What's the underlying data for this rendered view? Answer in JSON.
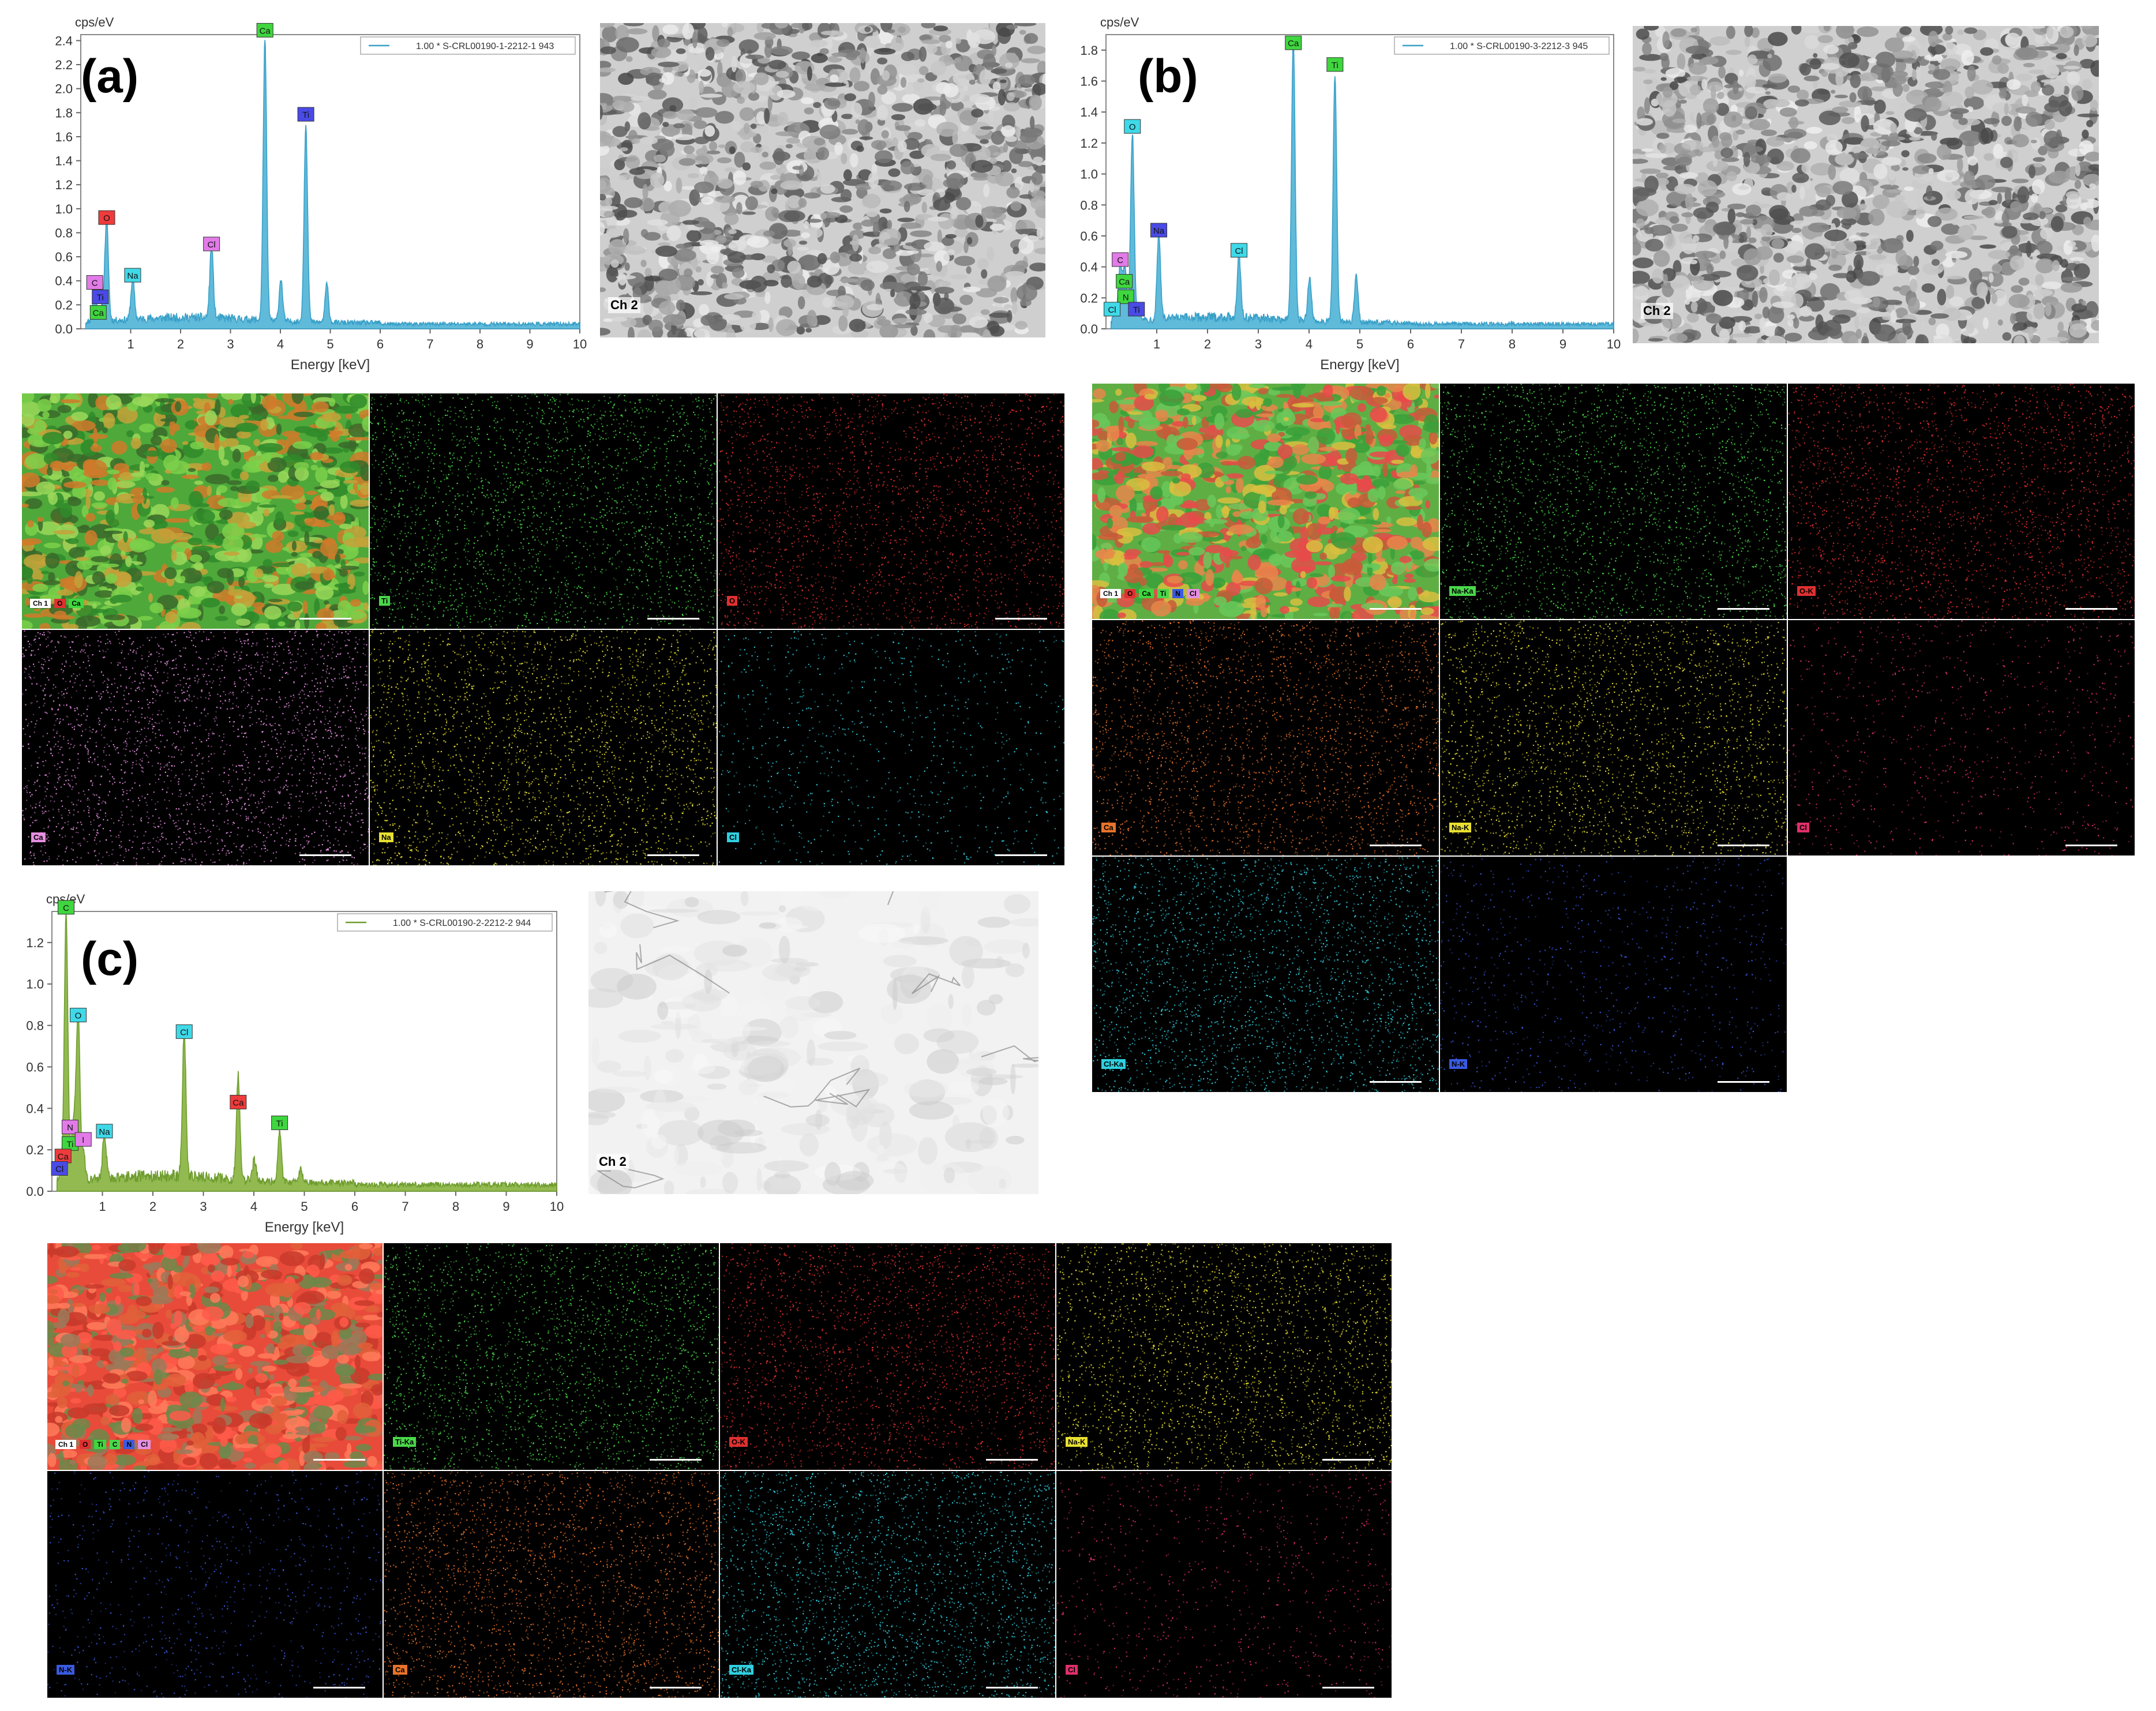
{
  "figure_labels": {
    "a": "(a)",
    "b": "(b)",
    "c": "(c)"
  },
  "sem_label": "Ch 2",
  "chart_data": [
    {
      "id": "a",
      "type": "line",
      "ylabel": "cps/eV",
      "xlabel": "Energy [keV]",
      "legend": "1.00 * S-CRL00190-1-2212-1 943",
      "xlim": [
        0,
        10
      ],
      "ylim": [
        0,
        2.45
      ],
      "xticks": [
        1,
        2,
        3,
        4,
        5,
        6,
        7,
        8,
        9,
        10
      ],
      "yticks": [
        0.0,
        0.2,
        0.4,
        0.6,
        0.8,
        1.0,
        1.2,
        1.4,
        1.6,
        1.8,
        2.0,
        2.2,
        2.4
      ],
      "color": "#3aa0c8",
      "fill": "#4fb3d6",
      "baseline": 0.05,
      "peaks": [
        {
          "x": 0.28,
          "y": 0.3
        },
        {
          "x": 0.39,
          "y": 0.06
        },
        {
          "x": 0.46,
          "y": 0.12
        },
        {
          "x": 0.52,
          "y": 0.82
        },
        {
          "x": 1.04,
          "y": 0.34
        },
        {
          "x": 2.62,
          "y": 0.6
        },
        {
          "x": 3.69,
          "y": 2.35
        },
        {
          "x": 4.01,
          "y": 0.35
        },
        {
          "x": 4.51,
          "y": 1.65
        },
        {
          "x": 4.93,
          "y": 0.32
        }
      ],
      "labels": [
        {
          "text": "C",
          "x": 0.28,
          "y": 0.3,
          "color": "#e27be8"
        },
        {
          "text": "Ti",
          "x": 0.39,
          "y": 0.18,
          "color": "#4a4ae6"
        },
        {
          "text": "Ca",
          "x": 0.35,
          "y": 0.05,
          "color": "#3fd63f"
        },
        {
          "text": "O",
          "x": 0.52,
          "y": 0.84,
          "color": "#ee3b3b"
        },
        {
          "text": "Na",
          "x": 1.04,
          "y": 0.36,
          "color": "#3fd9e8"
        },
        {
          "text": "Cl",
          "x": 2.62,
          "y": 0.62,
          "color": "#e27be8"
        },
        {
          "text": "Ca",
          "x": 3.69,
          "y": 2.4,
          "color": "#3fd63f"
        },
        {
          "text": "Ti",
          "x": 4.51,
          "y": 1.7,
          "color": "#4a4ae6"
        }
      ]
    },
    {
      "id": "b",
      "type": "line",
      "ylabel": "cps/eV",
      "xlabel": "Energy [keV]",
      "legend": "1.00 * S-CRL00190-3-2212-3 945",
      "xlim": [
        0,
        10
      ],
      "ylim": [
        0,
        1.9
      ],
      "xticks": [
        1,
        2,
        3,
        4,
        5,
        6,
        7,
        8,
        9,
        10
      ],
      "yticks": [
        0.0,
        0.2,
        0.4,
        0.6,
        0.8,
        1.0,
        1.2,
        1.4,
        1.6,
        1.8
      ],
      "color": "#3aa0c8",
      "fill": "#4fb3d6",
      "baseline": 0.04,
      "peaks": [
        {
          "x": 0.18,
          "y": 0.06
        },
        {
          "x": 0.28,
          "y": 0.36
        },
        {
          "x": 0.36,
          "y": 0.2
        },
        {
          "x": 0.39,
          "y": 0.16
        },
        {
          "x": 0.52,
          "y": 1.22
        },
        {
          "x": 0.67,
          "y": 0.05
        },
        {
          "x": 1.04,
          "y": 0.55
        },
        {
          "x": 2.62,
          "y": 0.42
        },
        {
          "x": 3.69,
          "y": 1.82
        },
        {
          "x": 4.01,
          "y": 0.28
        },
        {
          "x": 4.51,
          "y": 1.6
        },
        {
          "x": 4.93,
          "y": 0.3
        }
      ],
      "labels": [
        {
          "text": "C",
          "x": 0.28,
          "y": 0.38,
          "color": "#e27be8"
        },
        {
          "text": "Ca",
          "x": 0.36,
          "y": 0.24,
          "color": "#3fd63f"
        },
        {
          "text": "N",
          "x": 0.39,
          "y": 0.14,
          "color": "#3fd63f"
        },
        {
          "text": "Cl",
          "x": 0.12,
          "y": 0.06,
          "color": "#3fd9e8"
        },
        {
          "text": "Ti",
          "x": 0.6,
          "y": 0.06,
          "color": "#4a4ae6"
        },
        {
          "text": "O",
          "x": 0.52,
          "y": 1.24,
          "color": "#3fd9e8"
        },
        {
          "text": "Na",
          "x": 1.04,
          "y": 0.57,
          "color": "#4a4ae6"
        },
        {
          "text": "Cl",
          "x": 2.62,
          "y": 0.44,
          "color": "#3fd9e8"
        },
        {
          "text": "Ca",
          "x": 3.69,
          "y": 1.78,
          "color": "#3fd63f"
        },
        {
          "text": "Ti",
          "x": 4.51,
          "y": 1.64,
          "color": "#3fd63f"
        }
      ]
    },
    {
      "id": "c",
      "type": "line",
      "ylabel": "cps/eV",
      "xlabel": "Energy [keV]",
      "legend": "1.00 * S-CRL00190-2-2212-2 944",
      "xlim": [
        0,
        10
      ],
      "ylim": [
        0,
        1.35
      ],
      "xticks": [
        1,
        2,
        3,
        4,
        5,
        6,
        7,
        8,
        9,
        10
      ],
      "yticks": [
        0.0,
        0.2,
        0.4,
        0.6,
        0.8,
        1.0,
        1.2
      ],
      "color": "#6f9d2e",
      "fill": "#86b33e",
      "baseline": 0.04,
      "peaks": [
        {
          "x": 0.18,
          "y": 0.06
        },
        {
          "x": 0.28,
          "y": 1.3
        },
        {
          "x": 0.39,
          "y": 0.14
        },
        {
          "x": 0.45,
          "y": 0.24
        },
        {
          "x": 0.52,
          "y": 0.78
        },
        {
          "x": 0.62,
          "y": 0.14
        },
        {
          "x": 1.04,
          "y": 0.22
        },
        {
          "x": 2.62,
          "y": 0.7
        },
        {
          "x": 3.69,
          "y": 0.5
        },
        {
          "x": 4.01,
          "y": 0.1
        },
        {
          "x": 4.51,
          "y": 0.25
        },
        {
          "x": 4.93,
          "y": 0.06
        }
      ],
      "labels": [
        {
          "text": "C",
          "x": 0.28,
          "y": 1.32,
          "color": "#3fd63f"
        },
        {
          "text": "O",
          "x": 0.52,
          "y": 0.8,
          "color": "#3fd9e8"
        },
        {
          "text": "N",
          "x": 0.36,
          "y": 0.26,
          "color": "#e27be8"
        },
        {
          "text": "Ti",
          "x": 0.36,
          "y": 0.18,
          "color": "#3fd63f"
        },
        {
          "text": "Ca",
          "x": 0.22,
          "y": 0.12,
          "color": "#ee3b3b"
        },
        {
          "text": "Cl",
          "x": 0.15,
          "y": 0.06,
          "color": "#4a4ae6"
        },
        {
          "text": "I",
          "x": 0.62,
          "y": 0.2,
          "color": "#e27be8"
        },
        {
          "text": "Na",
          "x": 1.04,
          "y": 0.24,
          "color": "#3fd9e8"
        },
        {
          "text": "Cl",
          "x": 2.62,
          "y": 0.72,
          "color": "#3fd9e8"
        },
        {
          "text": "Ca",
          "x": 3.69,
          "y": 0.38,
          "color": "#ee3b3b"
        },
        {
          "text": "Ti",
          "x": 4.51,
          "y": 0.28,
          "color": "#3fd63f"
        }
      ]
    }
  ],
  "maps": {
    "a": [
      {
        "label": "Ch 1",
        "color": "composite",
        "badges": [
          "Ch 1",
          "O",
          "Ca"
        ]
      },
      {
        "label": "Ti",
        "color": "#4ad84a"
      },
      {
        "label": "O",
        "color": "#e03030"
      },
      {
        "label": "Ca",
        "color": "#e58fe0"
      },
      {
        "label": "Na",
        "color": "#e8e030"
      },
      {
        "label": "Cl",
        "color": "#30d0e0"
      }
    ],
    "b": [
      {
        "label": "Ch 1",
        "color": "composite",
        "badges": [
          "Ch 1",
          "O",
          "Ca",
          "Ti",
          "N",
          "Cl"
        ]
      },
      {
        "label": "Na-Ka",
        "color": "#4ad84a"
      },
      {
        "label": "O-K",
        "color": "#e03030"
      },
      {
        "label": "Ca",
        "color": "#e8732a"
      },
      {
        "label": "Na-K",
        "color": "#e8e030"
      },
      {
        "label": "Cl",
        "color": "#e0306a"
      },
      {
        "label": "Cl-Ka",
        "color": "#30d0e0"
      },
      {
        "label": "N-K",
        "color": "#3a5ae0"
      }
    ],
    "c": [
      {
        "label": "Ch 1",
        "color": "composite",
        "badges": [
          "Ch 1",
          "O",
          "Ti",
          "C",
          "N",
          "Cl"
        ]
      },
      {
        "label": "Ti-Ka",
        "color": "#4ad84a"
      },
      {
        "label": "O-K",
        "color": "#e03030"
      },
      {
        "label": "Na-K",
        "color": "#e8e030"
      },
      {
        "label": "N-K",
        "color": "#3a5ae0"
      },
      {
        "label": "Ca",
        "color": "#e8732a"
      },
      {
        "label": "Cl-Ka",
        "color": "#30d0e0"
      },
      {
        "label": "Cl",
        "color": "#e0306a"
      }
    ]
  }
}
